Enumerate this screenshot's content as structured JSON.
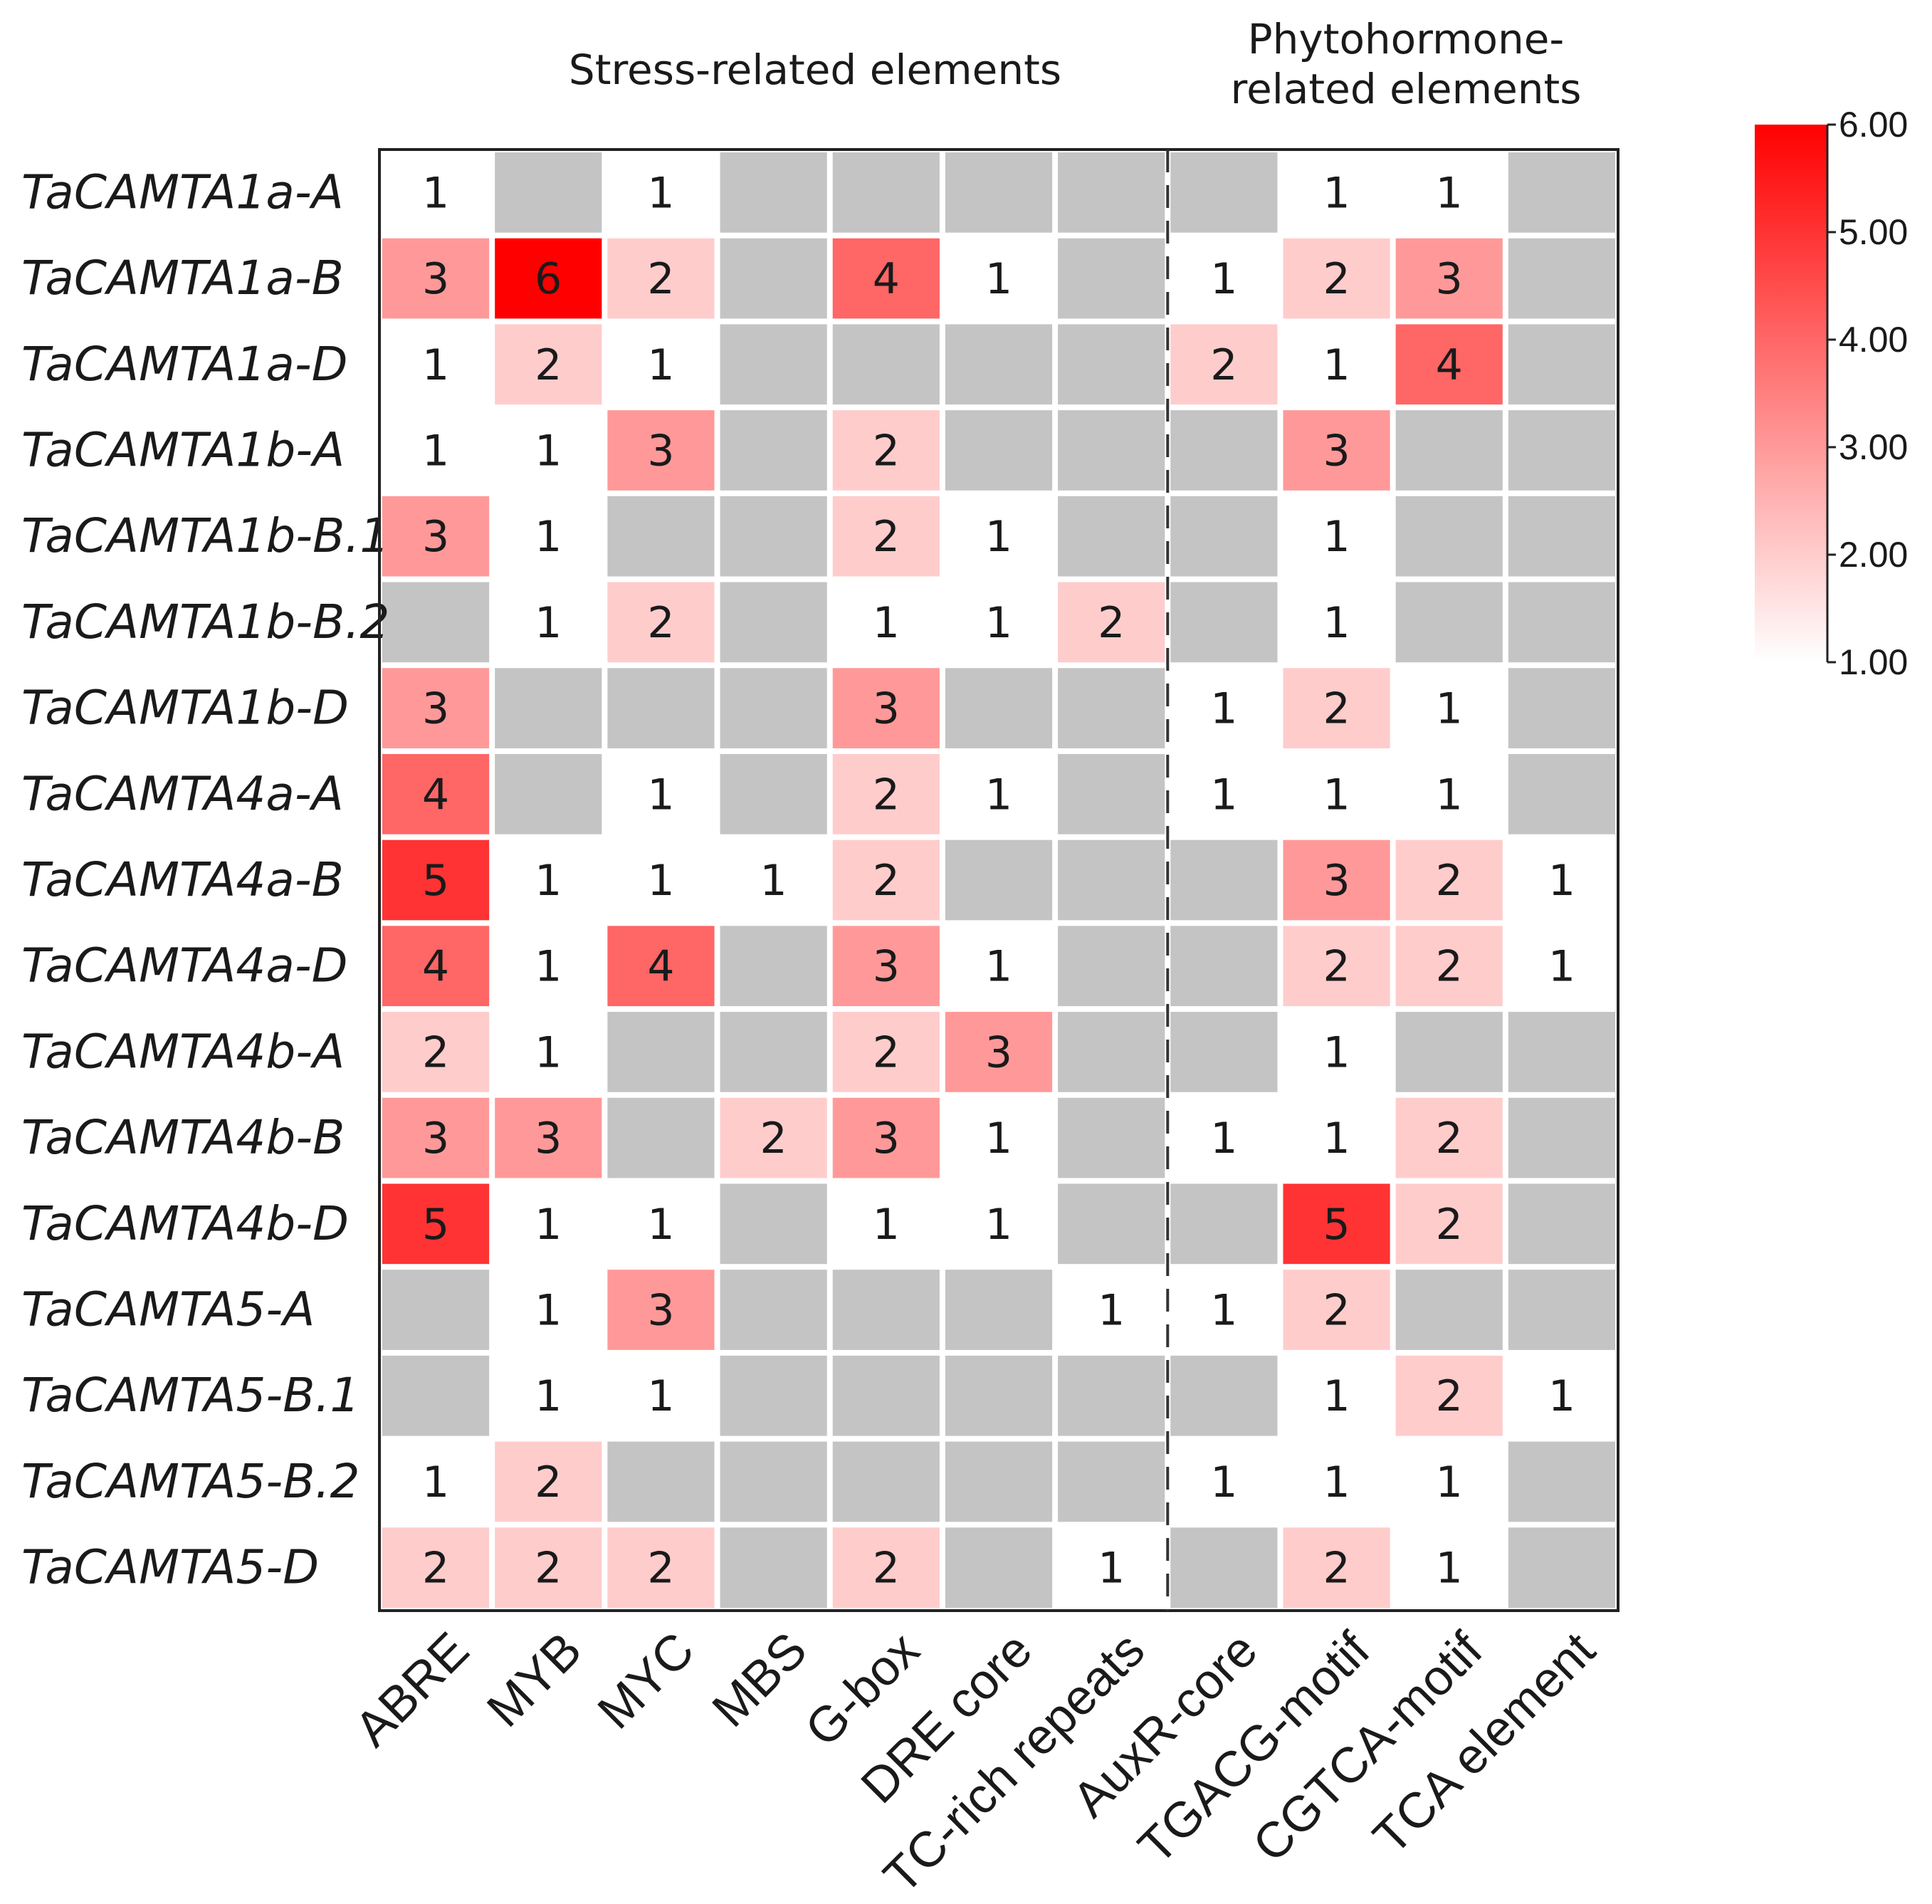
{
  "chart_data": {
    "type": "heatmap",
    "groups": [
      {
        "name": "Stress-related elements",
        "lines": [
          "Stress-related elements"
        ]
      },
      {
        "name": "Phytohormone-related elements",
        "lines": [
          "Phytohormone-",
          "related elements"
        ]
      }
    ],
    "columns": [
      "ABRE",
      "MYB",
      "MYC",
      "MBS",
      "G-box",
      "DRE core",
      "TC-rich repeats",
      "AuxR-core",
      "TGACG-motif",
      "CGTCA-motif",
      "TCA element"
    ],
    "rows": [
      "TaCAMTA1a-A",
      "TaCAMTA1a-B",
      "TaCAMTA1a-D",
      "TaCAMTA1b-A",
      "TaCAMTA1b-B.1",
      "TaCAMTA1b-B.2",
      "TaCAMTA1b-D",
      "TaCAMTA4a-A",
      "TaCAMTA4a-B",
      "TaCAMTA4a-D",
      "TaCAMTA4b-A",
      "TaCAMTA4b-B",
      "TaCAMTA4b-D",
      "TaCAMTA5-A",
      "TaCAMTA5-B.1",
      "TaCAMTA5-B.2",
      "TaCAMTA5-D"
    ],
    "values": [
      [
        1,
        null,
        1,
        null,
        null,
        null,
        null,
        null,
        1,
        1,
        null
      ],
      [
        3,
        6,
        2,
        null,
        4,
        1,
        null,
        1,
        2,
        3,
        null
      ],
      [
        1,
        2,
        1,
        null,
        null,
        null,
        null,
        2,
        1,
        4,
        null
      ],
      [
        1,
        1,
        3,
        null,
        2,
        null,
        null,
        null,
        3,
        null,
        null
      ],
      [
        3,
        1,
        null,
        null,
        2,
        1,
        null,
        null,
        1,
        null,
        null
      ],
      [
        null,
        1,
        2,
        null,
        1,
        1,
        2,
        null,
        1,
        null,
        null
      ],
      [
        3,
        null,
        null,
        null,
        3,
        null,
        null,
        1,
        2,
        1,
        null
      ],
      [
        4,
        null,
        1,
        null,
        2,
        1,
        null,
        1,
        1,
        1,
        null
      ],
      [
        5,
        1,
        1,
        1,
        2,
        null,
        null,
        null,
        3,
        2,
        1
      ],
      [
        4,
        1,
        4,
        null,
        3,
        1,
        null,
        null,
        2,
        2,
        1
      ],
      [
        2,
        1,
        null,
        null,
        2,
        3,
        null,
        null,
        1,
        null,
        null
      ],
      [
        3,
        3,
        null,
        2,
        3,
        1,
        null,
        1,
        1,
        2,
        null
      ],
      [
        5,
        1,
        1,
        null,
        1,
        1,
        null,
        null,
        5,
        2,
        null
      ],
      [
        null,
        1,
        3,
        null,
        null,
        null,
        1,
        1,
        2,
        null,
        null
      ],
      [
        null,
        1,
        1,
        null,
        null,
        null,
        null,
        null,
        1,
        2,
        1
      ],
      [
        1,
        2,
        null,
        null,
        null,
        null,
        null,
        1,
        1,
        1,
        null
      ],
      [
        2,
        2,
        2,
        null,
        2,
        null,
        1,
        null,
        2,
        1,
        null
      ]
    ],
    "missing_color": "#c4c4c4",
    "colorscale": {
      "min": 1,
      "max": 6,
      "min_color": "#ffffff",
      "max_color": "#ff0000"
    },
    "colorbar": {
      "ticks": [
        "1.00",
        "2.00",
        "3.00",
        "4.00",
        "5.00",
        "6.00"
      ]
    },
    "divider_after_column": "TC-rich repeats"
  }
}
